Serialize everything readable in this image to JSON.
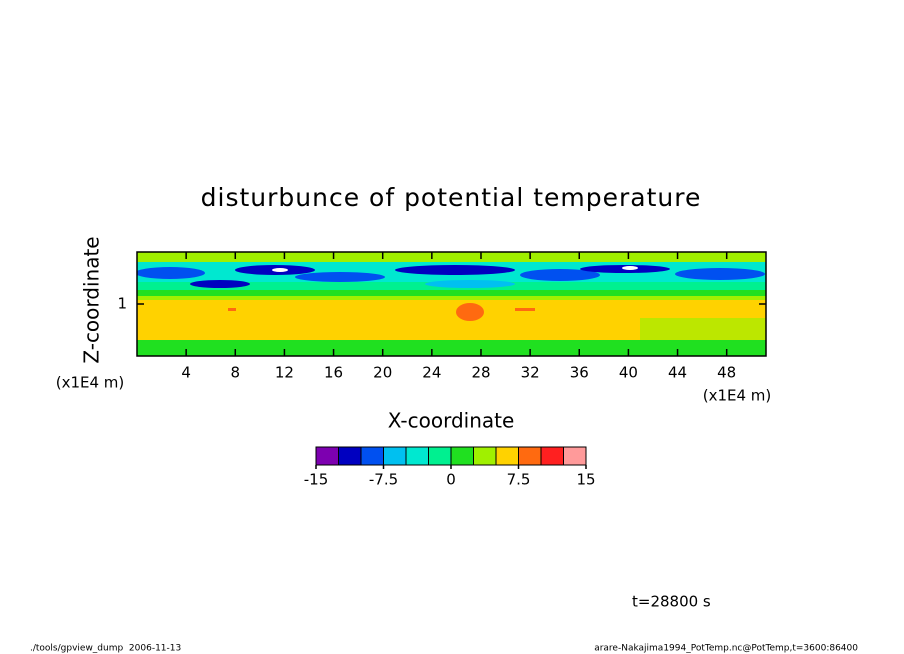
{
  "chart_data": {
    "type": "contour",
    "title": "disturbunce of potential temperature",
    "xlabel": "X-coordinate",
    "ylabel": "Z-coordinate",
    "xunit": "(x1E4 m)",
    "yunit": "(x1E4 m)",
    "xlim": [
      0,
      51.2
    ],
    "ylim": [
      0,
      2
    ],
    "xticks": [
      4,
      8,
      12,
      16,
      20,
      24,
      28,
      32,
      36,
      40,
      44,
      48
    ],
    "yticks": [
      1
    ],
    "levels": [
      -15,
      -12.5,
      -10,
      -7.5,
      -5,
      -2.5,
      0,
      2.5,
      5,
      7.5,
      10,
      12.5,
      15
    ],
    "colors": [
      "#7d00b0",
      "#0000c0",
      "#0050f0",
      "#00c0f0",
      "#00e8d0",
      "#00f090",
      "#20e020",
      "#a0f000",
      "#ffd200",
      "#ff6a10",
      "#ff2020",
      "#ff9a9a"
    ],
    "cbar_ticks": [
      -15,
      -7.5,
      0,
      7.5,
      15
    ],
    "annotation": "t=28800 s",
    "footer_left": "./tools/gpview_dump  2006-11-13",
    "footer_right": "arare-Nakajima1994_PotTemp.nc@PotTemp,t=3600:86400"
  }
}
